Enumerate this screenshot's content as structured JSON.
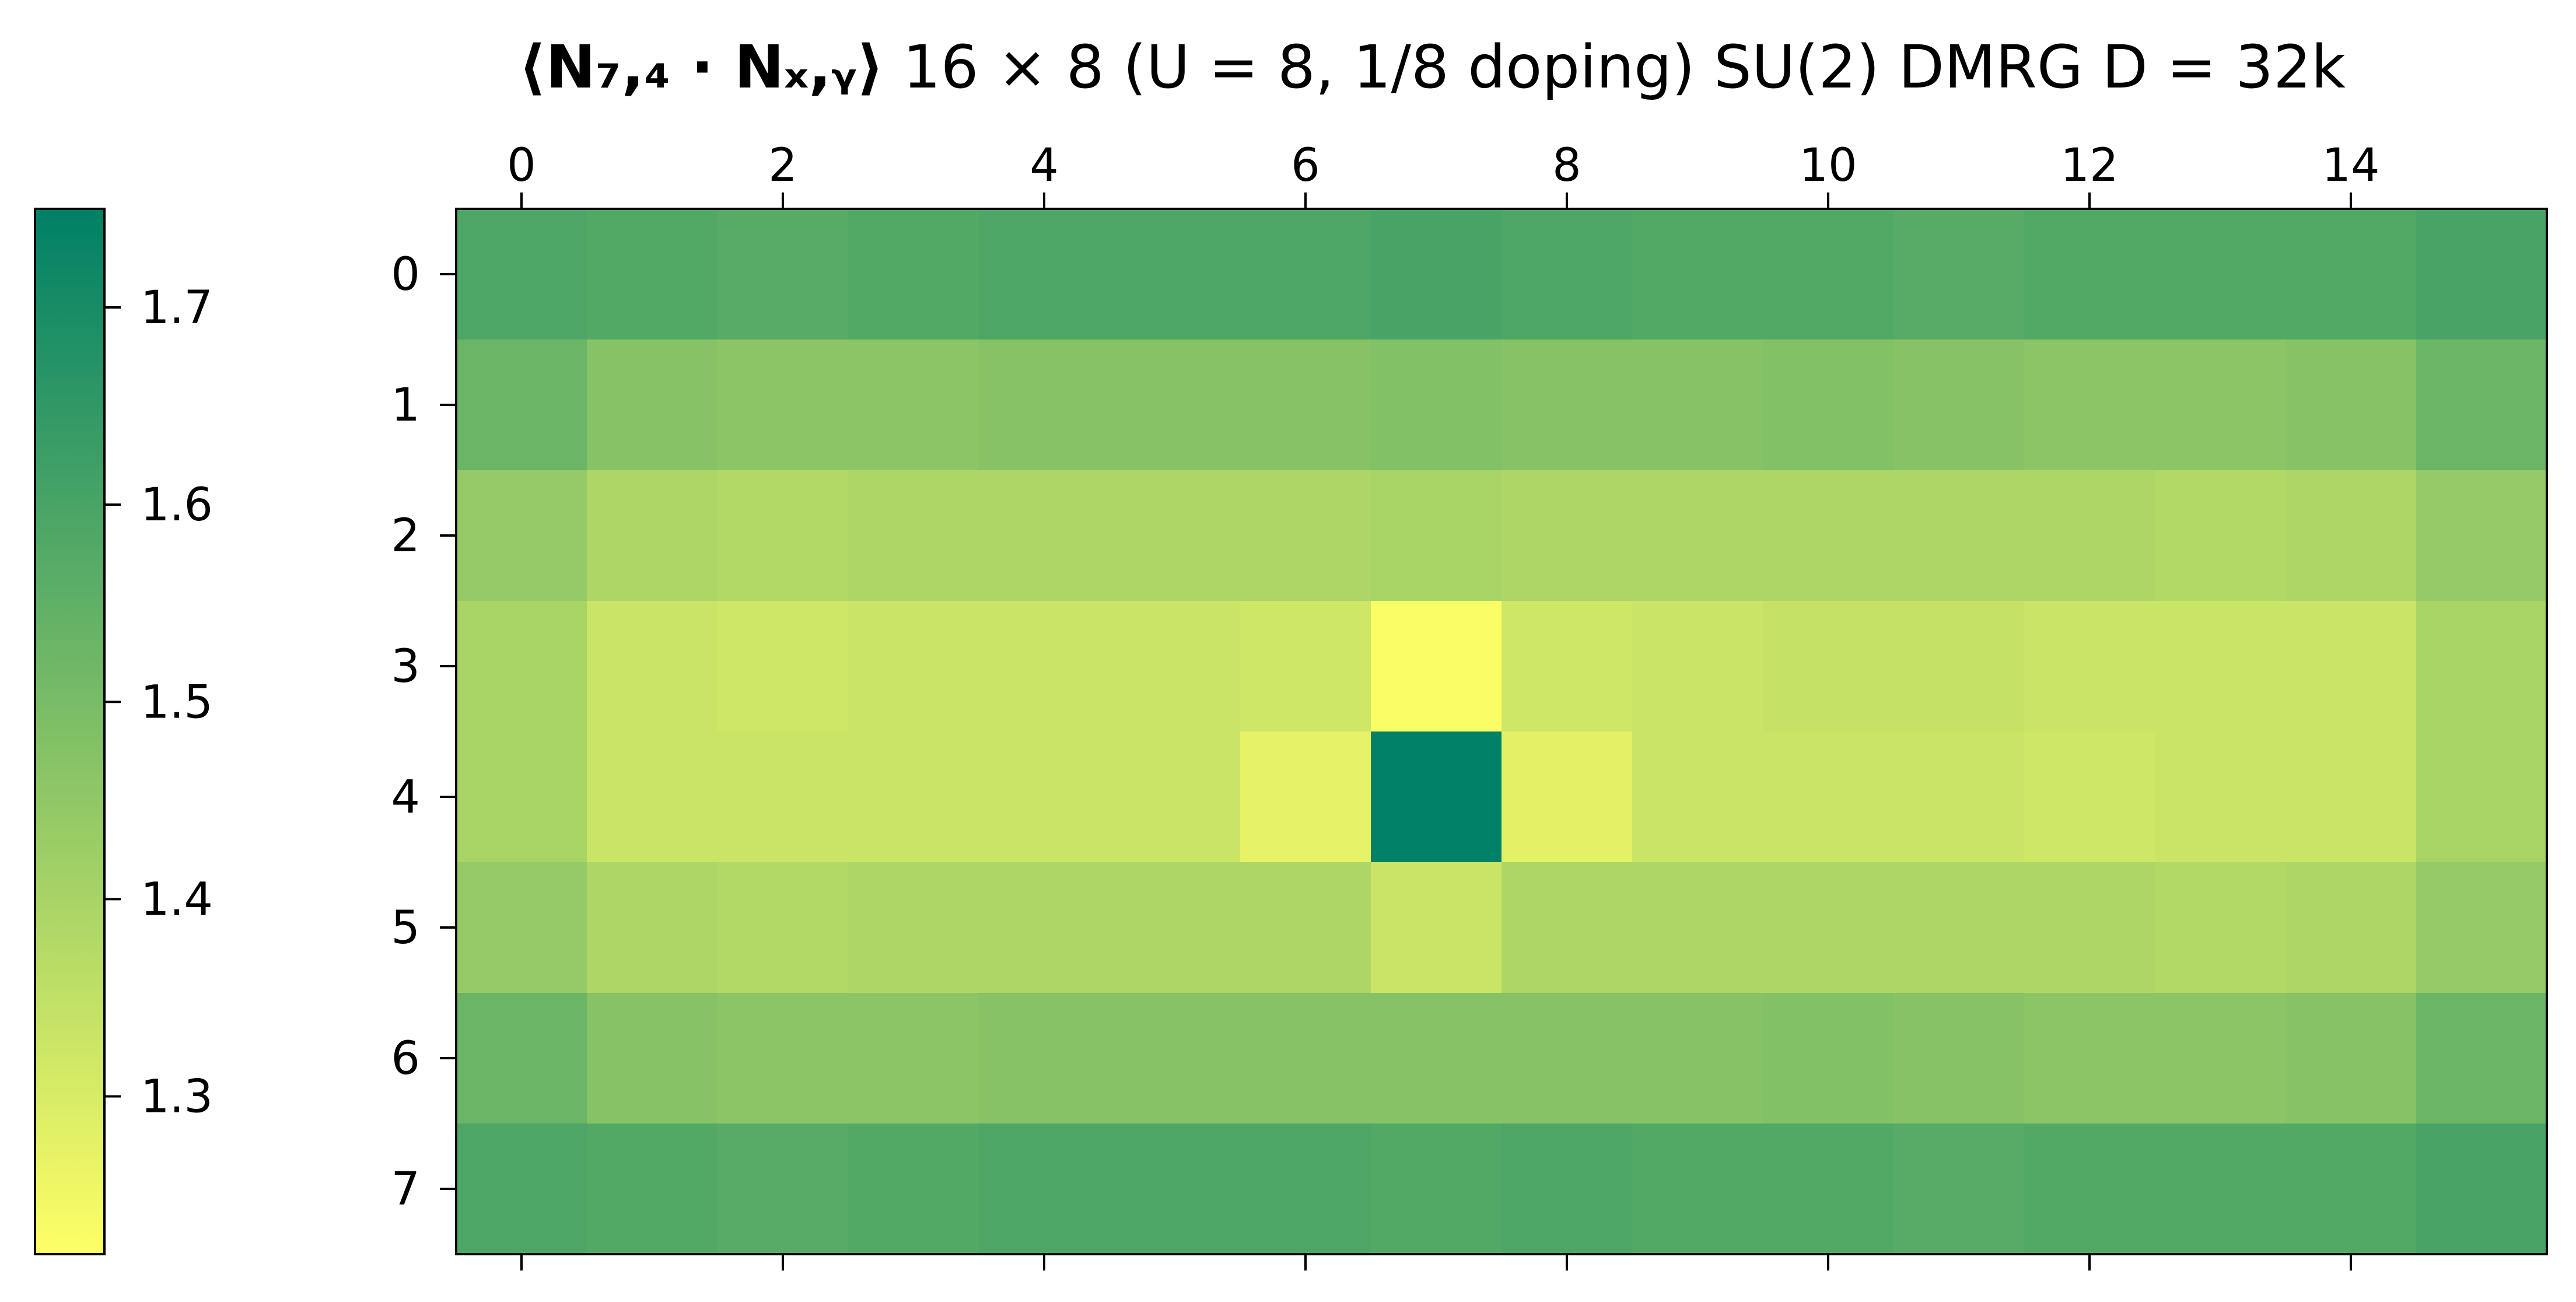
{
  "chart_data": {
    "type": "heatmap",
    "title": {
      "bold_part": "⟨N₇,₄ · Nₓ,ᵧ⟩",
      "rest": " 16 × 8 (U = 8, 1/8 doping) SU(2) DMRG D = 32k"
    },
    "x_ticks": [
      "0",
      "2",
      "4",
      "6",
      "8",
      "10",
      "12",
      "14"
    ],
    "y_ticks": [
      "0",
      "1",
      "2",
      "3",
      "4",
      "5",
      "6",
      "7"
    ],
    "x_tick_values": [
      0,
      2,
      4,
      6,
      8,
      10,
      12,
      14
    ],
    "y_tick_values": [
      0,
      1,
      2,
      3,
      4,
      5,
      6,
      7
    ],
    "xlim": [
      -0.5,
      15.5
    ],
    "ylim": [
      -0.5,
      7.5
    ],
    "x_axis_position": "top",
    "colorbar": {
      "position": "left",
      "min": 1.22,
      "max": 1.75,
      "ticks": [
        "1.3",
        "1.4",
        "1.5",
        "1.6",
        "1.7"
      ],
      "tick_values": [
        1.3,
        1.4,
        1.5,
        1.6,
        1.7
      ],
      "colormap": "summer_r",
      "low_color": "#ffff66",
      "high_color": "#008066"
    },
    "grid": false,
    "values": [
      [
        1.59,
        1.58,
        1.57,
        1.58,
        1.59,
        1.59,
        1.59,
        1.6,
        1.59,
        1.58,
        1.58,
        1.57,
        1.58,
        1.58,
        1.58,
        1.6
      ],
      [
        1.53,
        1.47,
        1.46,
        1.46,
        1.47,
        1.47,
        1.47,
        1.48,
        1.47,
        1.47,
        1.48,
        1.47,
        1.46,
        1.46,
        1.47,
        1.53
      ],
      [
        1.44,
        1.39,
        1.38,
        1.39,
        1.39,
        1.39,
        1.39,
        1.4,
        1.39,
        1.39,
        1.39,
        1.39,
        1.39,
        1.38,
        1.39,
        1.44
      ],
      [
        1.4,
        1.33,
        1.32,
        1.33,
        1.33,
        1.33,
        1.32,
        1.23,
        1.32,
        1.33,
        1.34,
        1.34,
        1.33,
        1.33,
        1.33,
        1.4
      ],
      [
        1.4,
        1.33,
        1.33,
        1.33,
        1.33,
        1.33,
        1.27,
        1.75,
        1.28,
        1.33,
        1.33,
        1.33,
        1.32,
        1.33,
        1.33,
        1.4
      ],
      [
        1.44,
        1.39,
        1.38,
        1.39,
        1.39,
        1.39,
        1.39,
        1.33,
        1.39,
        1.39,
        1.39,
        1.39,
        1.39,
        1.38,
        1.39,
        1.44
      ],
      [
        1.53,
        1.47,
        1.46,
        1.46,
        1.47,
        1.47,
        1.47,
        1.47,
        1.47,
        1.47,
        1.48,
        1.47,
        1.46,
        1.46,
        1.47,
        1.53
      ],
      [
        1.59,
        1.58,
        1.57,
        1.58,
        1.59,
        1.59,
        1.59,
        1.58,
        1.59,
        1.58,
        1.58,
        1.57,
        1.58,
        1.58,
        1.58,
        1.6
      ]
    ]
  }
}
